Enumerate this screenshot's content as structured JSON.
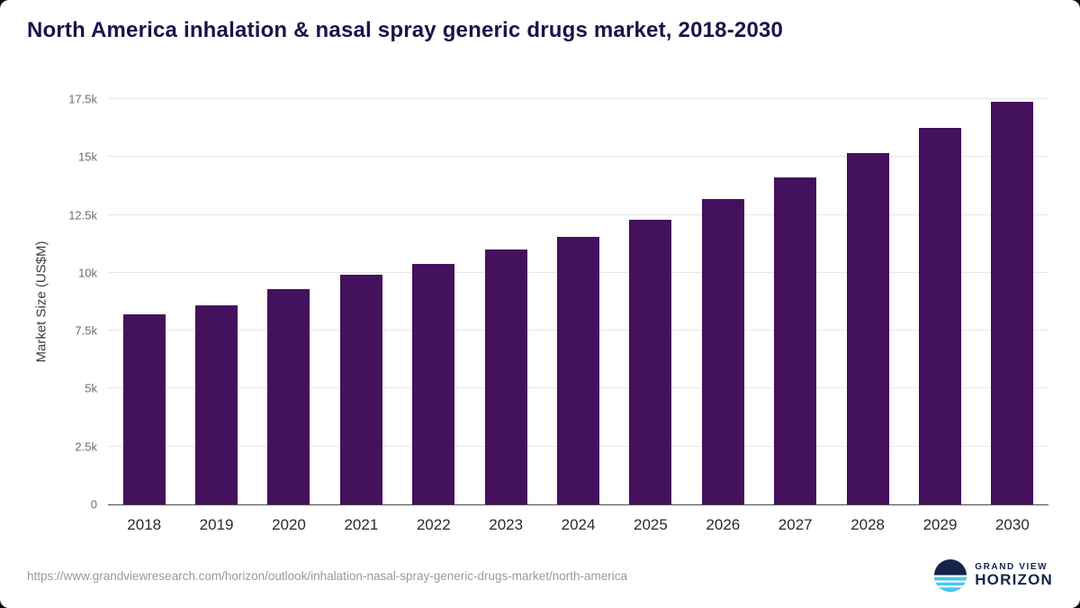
{
  "chart_data": {
    "type": "bar",
    "title": "North America inhalation & nasal spray generic drugs market, 2018-2030",
    "xlabel": "",
    "ylabel": "Market Size (US$M)",
    "categories": [
      "2018",
      "2019",
      "2020",
      "2021",
      "2022",
      "2023",
      "2024",
      "2025",
      "2026",
      "2027",
      "2028",
      "2029",
      "2030"
    ],
    "values": [
      8200,
      8600,
      9300,
      9900,
      10400,
      11000,
      11550,
      12300,
      13200,
      14100,
      15150,
      16250,
      17400
    ],
    "ylim": [
      0,
      17500
    ],
    "yticks": [
      0,
      2500,
      5000,
      7500,
      10000,
      12500,
      15000,
      17500
    ],
    "ytick_labels": [
      "0",
      "2.5k",
      "5k",
      "7.5k",
      "10k",
      "12.5k",
      "15k",
      "17.5k"
    ],
    "bar_color": "#44115c",
    "grid": true,
    "legend_position": "none"
  },
  "footer": {
    "source_url": "https://www.grandviewresearch.com/horizon/outlook/inhalation-nasal-spray-generic-drugs-market/north-america",
    "logo_line1": "GRAND VIEW",
    "logo_line2": "HORIZON"
  },
  "colors": {
    "bar": "#44115c",
    "title_text": "#1e1248",
    "logo_navy": "#15234d",
    "logo_blue": "#45c8f1"
  }
}
